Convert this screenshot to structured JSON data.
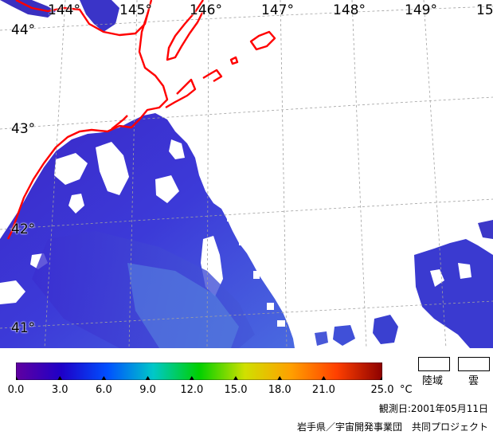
{
  "map": {
    "longitude_labels": [
      "144°",
      "145°",
      "146°",
      "147°",
      "148°",
      "149°",
      "15"
    ],
    "latitude_labels": [
      "44°",
      "43°",
      "42°",
      "41°"
    ],
    "colors": {
      "coastline": "#ff0000",
      "graticule": "#a0a0a0",
      "unobserved": "#ffffff"
    }
  },
  "colorbar": {
    "ticks": [
      "0.0",
      "3.0",
      "6.0",
      "9.0",
      "12.0",
      "15.0",
      "18.0",
      "21.0",
      "25.0"
    ],
    "tick_values": [
      0,
      3,
      6,
      9,
      12,
      15,
      18,
      21,
      25
    ],
    "range": [
      0,
      25
    ],
    "unit": "°C",
    "stops": [
      "#6000a0",
      "#1e00c8",
      "#0050ff",
      "#00c8c8",
      "#00d000",
      "#d0e000",
      "#ffa000",
      "#ff4000",
      "#8c0000"
    ]
  },
  "legend": {
    "land_label": "陸域",
    "cloud_label": "雲"
  },
  "observation_date": "観測日:2001年05月11日",
  "credit": "岩手県／宇宙開発事業団　共同プロジェクト"
}
